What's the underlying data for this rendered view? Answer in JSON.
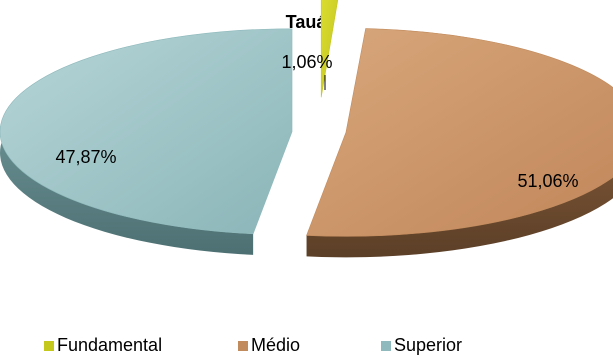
{
  "chart_data": {
    "type": "pie",
    "title": "Tauá",
    "categories": [
      "Fundamental",
      "Médio",
      "Superior"
    ],
    "values": [
      1.06,
      51.06,
      47.87
    ],
    "value_labels": [
      "1,06%",
      "51,06%",
      "47,87%"
    ],
    "series": [
      {
        "values": [
          1.06,
          51.06,
          47.87
        ]
      }
    ],
    "colors": {
      "Fundamental": "#c5c81c",
      "Médio": "#c28b5d",
      "Superior": "#8fb9bc"
    },
    "style": "3d-exploded",
    "legend": {
      "position": "bottom",
      "items": [
        "Fundamental",
        "Médio",
        "Superior"
      ]
    }
  }
}
